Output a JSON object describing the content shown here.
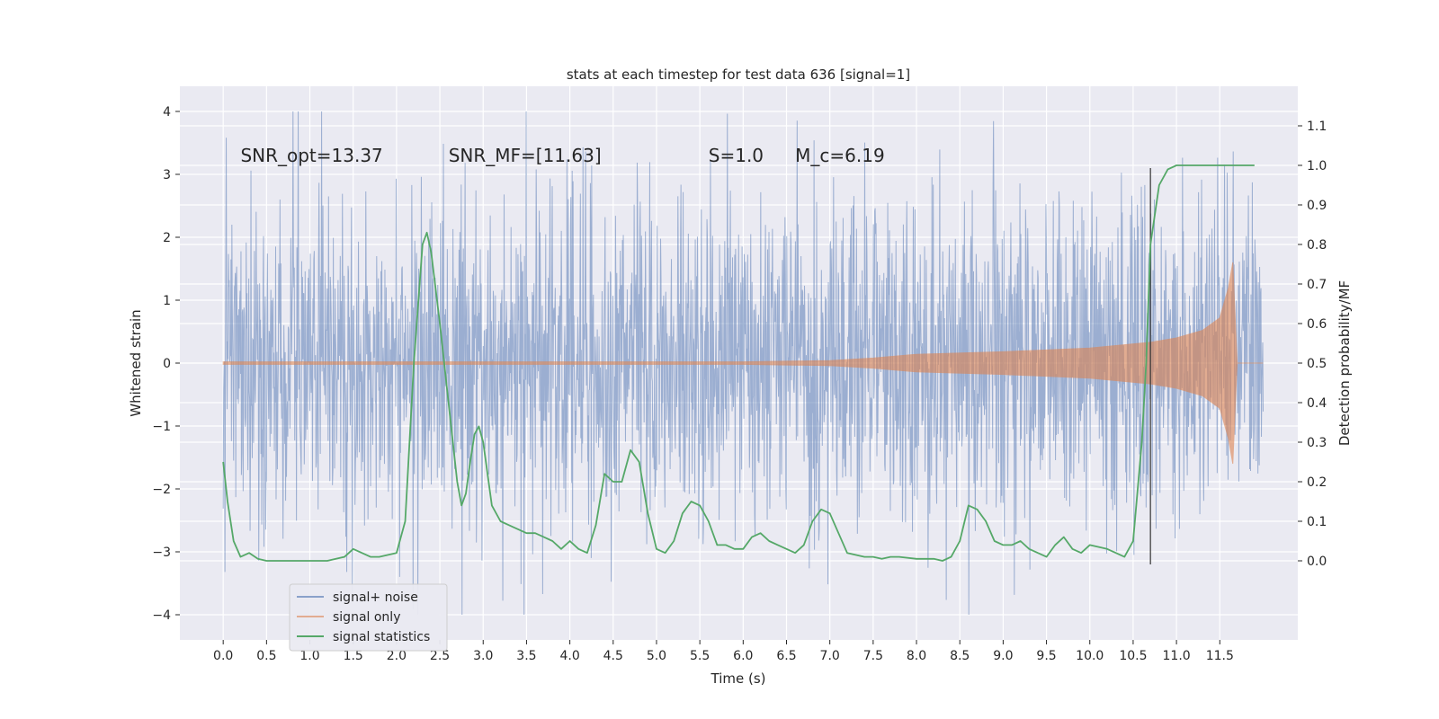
{
  "chart_data": {
    "type": "line",
    "title": "stats at each timestep for test data 636 [signal=1]",
    "xlabel": "Time (s)",
    "ylabel": "Whitened strain",
    "ylabel_right": "Detection probability/MF",
    "xlim": [
      -0.5,
      12.4
    ],
    "ylim": [
      -4.4,
      4.4
    ],
    "ylim_right": [
      -0.2,
      1.2
    ],
    "x_ticks": [
      0.0,
      0.5,
      1.0,
      1.5,
      2.0,
      2.5,
      3.0,
      3.5,
      4.0,
      4.5,
      5.0,
      5.5,
      6.0,
      6.5,
      7.0,
      7.5,
      8.0,
      8.5,
      9.0,
      9.5,
      10.0,
      10.5,
      11.0,
      11.5
    ],
    "x_tick_labels": [
      "0.0",
      "0.5",
      "1.0",
      "1.5",
      "2.0",
      "2.5",
      "3.0",
      "3.5",
      "4.0",
      "4.5",
      "5.0",
      "5.5",
      "6.0",
      "6.5",
      "7.0",
      "7.5",
      "8.0",
      "8.5",
      "9.0",
      "9.5",
      "10.0",
      "10.5",
      "11.0",
      "11.5"
    ],
    "y_ticks": [
      -4,
      -3,
      -2,
      -1,
      0,
      1,
      2,
      3,
      4
    ],
    "y_tick_labels": [
      "−4",
      "−3",
      "−2",
      "−1",
      "0",
      "1",
      "2",
      "3",
      "4"
    ],
    "y_right_ticks": [
      0.0,
      0.1,
      0.2,
      0.3,
      0.4,
      0.5,
      0.6,
      0.7,
      0.8,
      0.9,
      1.0,
      1.1
    ],
    "y_right_tick_labels": [
      "0.0",
      "0.1",
      "0.2",
      "0.3",
      "0.4",
      "0.5",
      "0.6",
      "0.7",
      "0.8",
      "0.9",
      "1.0",
      "1.1"
    ],
    "annotations": [
      {
        "id": "snr-opt",
        "text": "SNR_opt=13.37",
        "x": 0.2
      },
      {
        "id": "snr-mf",
        "text": "SNR_MF=[11.63]",
        "x": 2.6
      },
      {
        "id": "s-value",
        "text": "S=1.0",
        "x": 5.6
      },
      {
        "id": "mc-value",
        "text": "M_c=6.19",
        "x": 6.6
      }
    ],
    "annotation_y": 3.2,
    "vline_x": 10.7,
    "vline_range": [
      -3.2,
      3.1
    ],
    "series": [
      {
        "name": "signal+ noise",
        "color": "#4c72b0",
        "axis": "left",
        "noise_envelope": {
          "t_start": 0.0,
          "t_end": 12.0,
          "typical_amplitude": 1.3,
          "max_amplitude": 4.0
        }
      },
      {
        "name": "signal only",
        "color": "#dd8452",
        "axis": "left",
        "chirp_envelope": {
          "t": [
            0.0,
            6.0,
            7.0,
            7.5,
            8.0,
            9.0,
            10.0,
            10.7,
            11.0,
            11.3,
            11.5,
            11.6,
            11.65,
            11.7,
            12.0
          ],
          "amp": [
            0.02,
            0.02,
            0.04,
            0.08,
            0.14,
            0.18,
            0.24,
            0.33,
            0.4,
            0.52,
            0.72,
            1.2,
            1.6,
            0.0,
            0.0
          ]
        }
      },
      {
        "name": "signal statistics",
        "color": "#55a868",
        "axis": "right",
        "x": [
          0.0,
          0.05,
          0.12,
          0.2,
          0.3,
          0.4,
          0.5,
          0.6,
          0.8,
          1.0,
          1.2,
          1.4,
          1.5,
          1.6,
          1.7,
          1.8,
          2.0,
          2.1,
          2.2,
          2.3,
          2.35,
          2.4,
          2.5,
          2.6,
          2.7,
          2.75,
          2.8,
          2.85,
          2.9,
          2.95,
          3.0,
          3.05,
          3.1,
          3.2,
          3.3,
          3.4,
          3.5,
          3.6,
          3.7,
          3.8,
          3.9,
          4.0,
          4.1,
          4.2,
          4.3,
          4.4,
          4.5,
          4.6,
          4.7,
          4.8,
          4.9,
          5.0,
          5.1,
          5.2,
          5.3,
          5.4,
          5.5,
          5.6,
          5.7,
          5.8,
          5.9,
          6.0,
          6.1,
          6.2,
          6.3,
          6.4,
          6.5,
          6.6,
          6.7,
          6.8,
          6.9,
          7.0,
          7.2,
          7.4,
          7.5,
          7.6,
          7.7,
          7.8,
          8.0,
          8.2,
          8.3,
          8.4,
          8.5,
          8.6,
          8.7,
          8.8,
          8.9,
          9.0,
          9.1,
          9.2,
          9.3,
          9.4,
          9.5,
          9.6,
          9.7,
          9.8,
          9.9,
          10.0,
          10.2,
          10.4,
          10.5,
          10.6,
          10.65,
          10.7,
          10.8,
          10.9,
          11.0,
          11.2,
          11.5,
          11.9
        ],
        "y": [
          0.25,
          0.15,
          0.05,
          0.01,
          0.02,
          0.005,
          0.0,
          0.0,
          0.0,
          0.0,
          0.0,
          0.01,
          0.03,
          0.02,
          0.01,
          0.01,
          0.02,
          0.1,
          0.5,
          0.8,
          0.83,
          0.78,
          0.6,
          0.4,
          0.2,
          0.14,
          0.17,
          0.25,
          0.32,
          0.34,
          0.3,
          0.22,
          0.14,
          0.1,
          0.09,
          0.08,
          0.07,
          0.07,
          0.06,
          0.05,
          0.03,
          0.05,
          0.03,
          0.02,
          0.09,
          0.22,
          0.2,
          0.2,
          0.28,
          0.25,
          0.12,
          0.03,
          0.02,
          0.05,
          0.12,
          0.15,
          0.14,
          0.1,
          0.04,
          0.04,
          0.03,
          0.03,
          0.06,
          0.07,
          0.05,
          0.04,
          0.03,
          0.02,
          0.04,
          0.1,
          0.13,
          0.12,
          0.02,
          0.01,
          0.01,
          0.005,
          0.01,
          0.01,
          0.005,
          0.005,
          0.0,
          0.01,
          0.05,
          0.14,
          0.13,
          0.1,
          0.05,
          0.04,
          0.04,
          0.05,
          0.03,
          0.02,
          0.01,
          0.04,
          0.06,
          0.03,
          0.02,
          0.04,
          0.03,
          0.01,
          0.05,
          0.3,
          0.5,
          0.8,
          0.95,
          0.99,
          1.0,
          1.0,
          1.0,
          1.0
        ]
      }
    ],
    "legend": {
      "position": "lower-left",
      "entries": [
        "signal+ noise",
        "signal only",
        "signal statistics"
      ]
    },
    "grid": true
  }
}
